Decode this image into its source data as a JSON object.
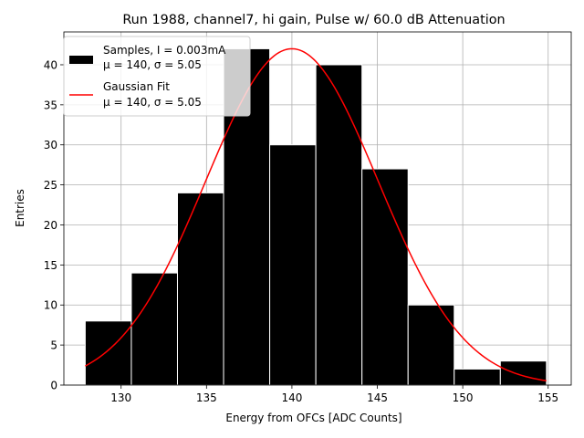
{
  "chart_data": {
    "type": "bar",
    "title": "Run 1988, channel7, hi gain, Pulse w/ 60.0 dB Attenuation",
    "xlabel": "Energy from OFCs [ADC Counts]",
    "ylabel": "Entries",
    "xlim": [
      126.65,
      156.35
    ],
    "ylim": [
      0,
      44.1
    ],
    "grid": true,
    "histogram": {
      "name": "Samples, I = 0.003mA",
      "stats": "μ = 140, σ = 5.05",
      "color": "#000000",
      "bin_edges": [
        127.9,
        130.6,
        133.3,
        136.0,
        138.7,
        141.4,
        144.1,
        146.8,
        149.5,
        152.2,
        154.9
      ],
      "counts": [
        8,
        14,
        24,
        42,
        30,
        40,
        27,
        10,
        2,
        3
      ]
    },
    "fit": {
      "name": "Gaussian Fit",
      "stats": "μ = 140, σ = 5.05",
      "color": "#ff0000",
      "mu": 140.0,
      "sigma": 5.05,
      "peak": 42.0,
      "x_range": [
        127.9,
        154.9
      ]
    },
    "x_ticks": [
      130,
      135,
      140,
      145,
      150,
      155
    ],
    "y_ticks": [
      0,
      5,
      10,
      15,
      20,
      25,
      30,
      35,
      40
    ],
    "legend_position": "top-left"
  }
}
